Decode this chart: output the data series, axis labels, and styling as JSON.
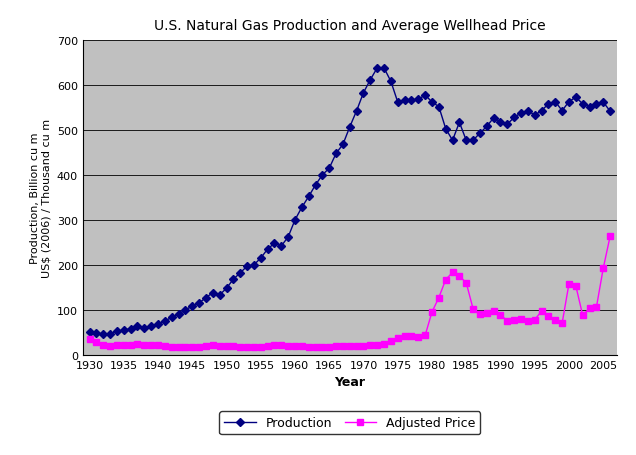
{
  "title": "U.S. Natural Gas Production and Average Wellhead Price",
  "xlabel": "Year",
  "ylabel": "Production, Billion cu m\nUS$ (2006) / Thousand cu m",
  "xlim": [
    1929,
    2007
  ],
  "ylim": [
    0,
    700
  ],
  "yticks": [
    0,
    100,
    200,
    300,
    400,
    500,
    600,
    700
  ],
  "xticks": [
    1930,
    1935,
    1940,
    1945,
    1950,
    1955,
    1960,
    1965,
    1970,
    1975,
    1980,
    1985,
    1990,
    1995,
    2000,
    2005
  ],
  "background_color": "#c0c0c0",
  "outer_background": "#ffffff",
  "production": {
    "years": [
      1930,
      1931,
      1932,
      1933,
      1934,
      1935,
      1936,
      1937,
      1938,
      1939,
      1940,
      1941,
      1942,
      1943,
      1944,
      1945,
      1946,
      1947,
      1948,
      1949,
      1950,
      1951,
      1952,
      1953,
      1954,
      1955,
      1956,
      1957,
      1958,
      1959,
      1960,
      1961,
      1962,
      1963,
      1964,
      1965,
      1966,
      1967,
      1968,
      1969,
      1970,
      1971,
      1972,
      1973,
      1974,
      1975,
      1976,
      1977,
      1978,
      1979,
      1980,
      1981,
      1982,
      1983,
      1984,
      1985,
      1986,
      1987,
      1988,
      1989,
      1990,
      1991,
      1992,
      1993,
      1994,
      1995,
      1996,
      1997,
      1998,
      1999,
      2000,
      2001,
      2002,
      2003,
      2004,
      2005,
      2006
    ],
    "values": [
      50,
      48,
      45,
      47,
      52,
      54,
      58,
      63,
      60,
      63,
      68,
      75,
      83,
      90,
      100,
      108,
      115,
      127,
      138,
      133,
      148,
      168,
      182,
      197,
      200,
      215,
      235,
      248,
      242,
      262,
      300,
      328,
      352,
      378,
      400,
      415,
      448,
      468,
      507,
      543,
      583,
      612,
      638,
      638,
      608,
      562,
      567,
      567,
      568,
      578,
      562,
      552,
      503,
      477,
      517,
      477,
      477,
      493,
      508,
      527,
      518,
      513,
      528,
      538,
      543,
      533,
      543,
      558,
      563,
      543,
      563,
      573,
      558,
      552,
      557,
      562,
      542
    ],
    "color": "#000080",
    "marker": "D",
    "markersize": 4,
    "label": "Production"
  },
  "adjusted_price": {
    "years": [
      1930,
      1931,
      1932,
      1933,
      1934,
      1935,
      1936,
      1937,
      1938,
      1939,
      1940,
      1941,
      1942,
      1943,
      1944,
      1945,
      1946,
      1947,
      1948,
      1949,
      1950,
      1951,
      1952,
      1953,
      1954,
      1955,
      1956,
      1957,
      1958,
      1959,
      1960,
      1961,
      1962,
      1963,
      1964,
      1965,
      1966,
      1967,
      1968,
      1969,
      1970,
      1971,
      1972,
      1973,
      1974,
      1975,
      1976,
      1977,
      1978,
      1979,
      1980,
      1981,
      1982,
      1983,
      1984,
      1985,
      1986,
      1987,
      1988,
      1989,
      1990,
      1991,
      1992,
      1993,
      1994,
      1995,
      1996,
      1997,
      1998,
      1999,
      2000,
      2001,
      2002,
      2003,
      2004,
      2005,
      2006
    ],
    "values": [
      35,
      28,
      22,
      20,
      22,
      22,
      22,
      24,
      22,
      22,
      22,
      20,
      18,
      16,
      16,
      16,
      18,
      20,
      22,
      20,
      20,
      20,
      18,
      18,
      18,
      18,
      20,
      22,
      22,
      20,
      20,
      20,
      18,
      18,
      18,
      18,
      20,
      20,
      20,
      20,
      20,
      22,
      22,
      23,
      30,
      38,
      42,
      42,
      40,
      43,
      95,
      127,
      167,
      183,
      175,
      160,
      102,
      90,
      93,
      98,
      88,
      76,
      78,
      80,
      75,
      78,
      97,
      87,
      77,
      70,
      158,
      153,
      88,
      103,
      105,
      192,
      263
    ],
    "color": "#ff00ff",
    "marker": "s",
    "markersize": 4,
    "label": "Adjusted Price"
  }
}
